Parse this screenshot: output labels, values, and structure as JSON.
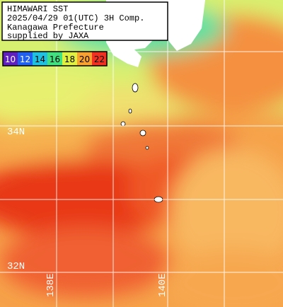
{
  "header": {
    "lines": [
      "HIMAWARI SST",
      "2025/04/29 01(UTC) 3H Comp.",
      "Kanagawa Prefecture",
      "supplied by JAXA"
    ]
  },
  "colorbar": {
    "ticks": [
      10,
      12,
      14,
      16,
      18,
      20,
      22
    ]
  },
  "grid_labels": {
    "lat": [
      "34N",
      "32N"
    ],
    "lon": [
      "138E",
      "140E"
    ]
  }
}
